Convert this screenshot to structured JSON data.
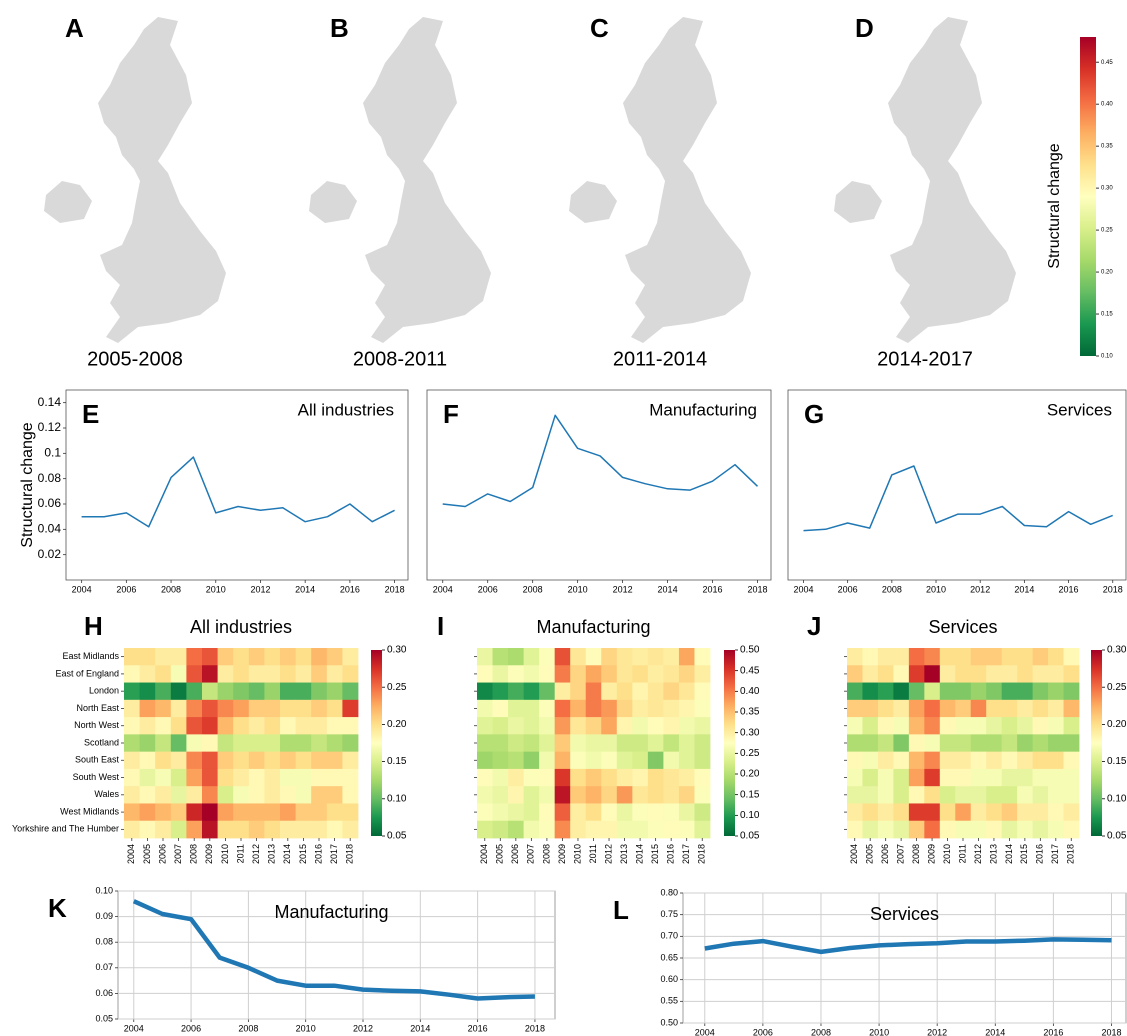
{
  "chart_data": [
    {
      "type": "map",
      "panels": [
        {
          "letter": "A",
          "period": "2005-2008"
        },
        {
          "letter": "B",
          "period": "2008-2011"
        },
        {
          "letter": "C",
          "period": "2011-2014"
        },
        {
          "letter": "D",
          "period": "2014-2017"
        }
      ],
      "colorbar": {
        "label": "Structural change",
        "cmap": "RdYlGn_r",
        "range": [
          0.1,
          0.48
        ],
        "ticks": [
          {
            "value": 0.1,
            "label": "0.10"
          },
          0.15,
          {
            "value": 0.2,
            "label": "0.20"
          },
          0.25,
          {
            "value": 0.3,
            "label": "0.30"
          },
          0.35,
          {
            "value": 0.4,
            "label": "0.40"
          },
          0.45
        ]
      }
    },
    {
      "type": "line",
      "letter": "E",
      "title": "All industries",
      "y_label": "Structural change",
      "color": "#1f77b4",
      "line_width": 1.5,
      "x": [
        2004,
        2005,
        2006,
        2007,
        2008,
        2009,
        2010,
        2011,
        2012,
        2013,
        2014,
        2015,
        2016,
        2017,
        2018
      ],
      "values": [
        0.05,
        0.05,
        0.053,
        0.042,
        0.081,
        0.097,
        0.053,
        0.058,
        0.055,
        0.057,
        0.046,
        0.05,
        0.06,
        0.046,
        0.055
      ],
      "xlim": [
        2003.3,
        2018.6
      ],
      "ylim": [
        0,
        0.15
      ],
      "xticks": [
        2004,
        2006,
        2008,
        2010,
        2012,
        2014,
        2016,
        2018
      ],
      "yticks": [
        0.02,
        0.04,
        0.06,
        0.08,
        0.1,
        0.12,
        0.14
      ]
    },
    {
      "type": "line",
      "letter": "F",
      "title": "Manufacturing",
      "color": "#1f77b4",
      "line_width": 1.5,
      "x": [
        2004,
        2005,
        2006,
        2007,
        2008,
        2009,
        2010,
        2011,
        2012,
        2013,
        2014,
        2015,
        2016,
        2017,
        2018
      ],
      "values": [
        0.06,
        0.058,
        0.068,
        0.062,
        0.073,
        0.13,
        0.104,
        0.098,
        0.081,
        0.076,
        0.072,
        0.071,
        0.078,
        0.091,
        0.074
      ],
      "xlim": [
        2003.3,
        2018.6
      ],
      "ylim": [
        0,
        0.15
      ],
      "xticks": [
        2004,
        2006,
        2008,
        2010,
        2012,
        2014,
        2016,
        2018
      ]
    },
    {
      "type": "line",
      "letter": "G",
      "title": "Services",
      "color": "#1f77b4",
      "line_width": 1.5,
      "x": [
        2004,
        2005,
        2006,
        2007,
        2008,
        2009,
        2010,
        2011,
        2012,
        2013,
        2014,
        2015,
        2016,
        2017,
        2018
      ],
      "values": [
        0.039,
        0.04,
        0.045,
        0.041,
        0.083,
        0.09,
        0.045,
        0.052,
        0.052,
        0.058,
        0.043,
        0.042,
        0.054,
        0.044,
        0.051
      ],
      "xlim": [
        2003.3,
        2018.6
      ],
      "ylim": [
        0,
        0.15
      ],
      "xticks": [
        2004,
        2006,
        2008,
        2010,
        2012,
        2014,
        2016,
        2018
      ]
    },
    {
      "type": "heatmap",
      "letter": "H",
      "title": "All industries",
      "cmap": "RdYlGn_r",
      "clim": [
        0.05,
        0.3
      ],
      "cticks": [
        0.05,
        {
          "value": 0.1,
          "label": "0.10"
        },
        0.15,
        {
          "value": 0.2,
          "label": "0.20"
        },
        0.25,
        {
          "value": 0.3,
          "label": "0.30"
        }
      ],
      "categories": [
        "East Midlands",
        "East of England",
        "London",
        "North East",
        "North West",
        "Scotland",
        "South East",
        "South West",
        "Wales",
        "West Midlands",
        "Yorkshire and The Humber"
      ],
      "x": [
        2004,
        2005,
        2006,
        2007,
        2008,
        2009,
        2010,
        2011,
        2012,
        2013,
        2014,
        2015,
        2016,
        2017,
        2018
      ],
      "values": [
        [
          0.2,
          0.2,
          0.19,
          0.19,
          0.25,
          0.26,
          0.21,
          0.2,
          0.21,
          0.2,
          0.21,
          0.2,
          0.22,
          0.21,
          0.19
        ],
        [
          0.18,
          0.19,
          0.2,
          0.17,
          0.26,
          0.29,
          0.19,
          0.2,
          0.19,
          0.19,
          0.2,
          0.19,
          0.21,
          0.19,
          0.2
        ],
        [
          0.08,
          0.07,
          0.09,
          0.06,
          0.09,
          0.14,
          0.12,
          0.11,
          0.1,
          0.12,
          0.09,
          0.09,
          0.11,
          0.12,
          0.1
        ],
        [
          0.19,
          0.23,
          0.22,
          0.19,
          0.24,
          0.26,
          0.24,
          0.23,
          0.21,
          0.21,
          0.2,
          0.2,
          0.21,
          0.2,
          0.27
        ],
        [
          0.18,
          0.19,
          0.18,
          0.2,
          0.26,
          0.27,
          0.22,
          0.2,
          0.19,
          0.2,
          0.18,
          0.19,
          0.19,
          0.18,
          0.18
        ],
        [
          0.13,
          0.12,
          0.14,
          0.1,
          0.17,
          0.18,
          0.14,
          0.15,
          0.15,
          0.15,
          0.13,
          0.13,
          0.14,
          0.13,
          0.12
        ],
        [
          0.19,
          0.18,
          0.2,
          0.19,
          0.24,
          0.26,
          0.21,
          0.2,
          0.21,
          0.2,
          0.21,
          0.2,
          0.21,
          0.21,
          0.19
        ],
        [
          0.18,
          0.16,
          0.17,
          0.15,
          0.23,
          0.26,
          0.2,
          0.19,
          0.18,
          0.19,
          0.17,
          0.17,
          0.18,
          0.18,
          0.18
        ],
        [
          0.19,
          0.18,
          0.19,
          0.16,
          0.19,
          0.24,
          0.15,
          0.17,
          0.18,
          0.19,
          0.18,
          0.17,
          0.21,
          0.21,
          0.18
        ],
        [
          0.22,
          0.23,
          0.22,
          0.21,
          0.28,
          0.3,
          0.23,
          0.22,
          0.22,
          0.22,
          0.23,
          0.21,
          0.21,
          0.2,
          0.2
        ],
        [
          0.19,
          0.18,
          0.19,
          0.15,
          0.23,
          0.29,
          0.2,
          0.2,
          0.21,
          0.2,
          0.19,
          0.19,
          0.19,
          0.18,
          0.19
        ]
      ]
    },
    {
      "type": "heatmap",
      "letter": "I",
      "title": "Manufacturing",
      "cmap": "RdYlGn_r",
      "clim": [
        0.05,
        0.5
      ],
      "cticks": [
        0.05,
        {
          "value": 0.1,
          "label": "0.10"
        },
        0.15,
        {
          "value": 0.2,
          "label": "0.20"
        },
        0.25,
        {
          "value": 0.3,
          "label": "0.30"
        },
        0.35,
        {
          "value": 0.4,
          "label": "0.40"
        },
        0.45,
        {
          "value": 0.5,
          "label": "0.50"
        }
      ],
      "x": [
        2004,
        2005,
        2006,
        2007,
        2008,
        2009,
        2010,
        2011,
        2012,
        2013,
        2014,
        2015,
        2016,
        2017,
        2018
      ],
      "values": [
        [
          0.25,
          0.2,
          0.19,
          0.24,
          0.27,
          0.43,
          0.31,
          0.28,
          0.33,
          0.31,
          0.3,
          0.31,
          0.3,
          0.37,
          0.28
        ],
        [
          0.28,
          0.25,
          0.27,
          0.26,
          0.28,
          0.4,
          0.33,
          0.37,
          0.34,
          0.31,
          0.32,
          0.3,
          0.31,
          0.33,
          0.3
        ],
        [
          0.08,
          0.1,
          0.12,
          0.1,
          0.14,
          0.3,
          0.33,
          0.4,
          0.3,
          0.32,
          0.29,
          0.31,
          0.33,
          0.31,
          0.28
        ],
        [
          0.26,
          0.28,
          0.24,
          0.24,
          0.27,
          0.41,
          0.36,
          0.4,
          0.38,
          0.33,
          0.3,
          0.31,
          0.3,
          0.29,
          0.27
        ],
        [
          0.24,
          0.23,
          0.25,
          0.24,
          0.26,
          0.38,
          0.31,
          0.33,
          0.37,
          0.29,
          0.26,
          0.28,
          0.29,
          0.26,
          0.25
        ],
        [
          0.2,
          0.2,
          0.22,
          0.21,
          0.24,
          0.34,
          0.26,
          0.25,
          0.25,
          0.22,
          0.22,
          0.24,
          0.21,
          0.24,
          0.22
        ],
        [
          0.18,
          0.19,
          0.2,
          0.17,
          0.26,
          0.36,
          0.27,
          0.26,
          0.27,
          0.24,
          0.23,
          0.16,
          0.26,
          0.24,
          0.22
        ],
        [
          0.28,
          0.26,
          0.3,
          0.27,
          0.28,
          0.45,
          0.32,
          0.34,
          0.32,
          0.3,
          0.29,
          0.32,
          0.31,
          0.3,
          0.28
        ],
        [
          0.26,
          0.25,
          0.29,
          0.24,
          0.26,
          0.48,
          0.34,
          0.36,
          0.33,
          0.38,
          0.31,
          0.32,
          0.31,
          0.33,
          0.27
        ],
        [
          0.27,
          0.26,
          0.25,
          0.24,
          0.28,
          0.42,
          0.3,
          0.32,
          0.28,
          0.25,
          0.27,
          0.28,
          0.27,
          0.25,
          0.22
        ],
        [
          0.23,
          0.22,
          0.2,
          0.26,
          0.27,
          0.39,
          0.3,
          0.29,
          0.29,
          0.26,
          0.26,
          0.27,
          0.28,
          0.27,
          0.24
        ]
      ]
    },
    {
      "type": "heatmap",
      "letter": "J",
      "title": "Services",
      "cmap": "RdYlGn_r",
      "clim": [
        0.05,
        0.3
      ],
      "cticks": [
        0.05,
        {
          "value": 0.1,
          "label": "0.10"
        },
        0.15,
        {
          "value": 0.2,
          "label": "0.20"
        },
        0.25,
        {
          "value": 0.3,
          "label": "0.30"
        }
      ],
      "x": [
        2004,
        2005,
        2006,
        2007,
        2008,
        2009,
        2010,
        2011,
        2012,
        2013,
        2014,
        2015,
        2016,
        2017,
        2018
      ],
      "values": [
        [
          0.19,
          0.18,
          0.19,
          0.19,
          0.25,
          0.24,
          0.2,
          0.2,
          0.21,
          0.21,
          0.2,
          0.2,
          0.21,
          0.2,
          0.18
        ],
        [
          0.21,
          0.19,
          0.2,
          0.18,
          0.27,
          0.3,
          0.19,
          0.2,
          0.2,
          0.19,
          0.19,
          0.2,
          0.19,
          0.19,
          0.2
        ],
        [
          0.09,
          0.07,
          0.08,
          0.06,
          0.1,
          0.15,
          0.11,
          0.11,
          0.12,
          0.11,
          0.09,
          0.09,
          0.11,
          0.12,
          0.11
        ],
        [
          0.21,
          0.21,
          0.2,
          0.19,
          0.23,
          0.25,
          0.22,
          0.21,
          0.24,
          0.2,
          0.2,
          0.19,
          0.2,
          0.19,
          0.22
        ],
        [
          0.17,
          0.15,
          0.18,
          0.17,
          0.22,
          0.24,
          0.18,
          0.17,
          0.17,
          0.16,
          0.15,
          0.16,
          0.18,
          0.17,
          0.15
        ],
        [
          0.13,
          0.13,
          0.14,
          0.11,
          0.18,
          0.17,
          0.14,
          0.14,
          0.13,
          0.13,
          0.14,
          0.12,
          0.13,
          0.12,
          0.12
        ],
        [
          0.18,
          0.17,
          0.19,
          0.18,
          0.22,
          0.24,
          0.19,
          0.19,
          0.18,
          0.19,
          0.18,
          0.19,
          0.2,
          0.2,
          0.18
        ],
        [
          0.17,
          0.15,
          0.17,
          0.15,
          0.23,
          0.27,
          0.18,
          0.18,
          0.17,
          0.17,
          0.16,
          0.16,
          0.17,
          0.17,
          0.17
        ],
        [
          0.16,
          0.16,
          0.17,
          0.15,
          0.18,
          0.2,
          0.15,
          0.16,
          0.16,
          0.15,
          0.15,
          0.17,
          0.16,
          0.17,
          0.17
        ],
        [
          0.19,
          0.2,
          0.19,
          0.2,
          0.27,
          0.27,
          0.2,
          0.23,
          0.19,
          0.2,
          0.21,
          0.19,
          0.19,
          0.18,
          0.19
        ],
        [
          0.18,
          0.16,
          0.17,
          0.16,
          0.21,
          0.25,
          0.18,
          0.17,
          0.17,
          0.18,
          0.16,
          0.17,
          0.16,
          0.17,
          0.18
        ]
      ]
    },
    {
      "type": "line",
      "letter": "K",
      "title": "Manufacturing",
      "color": "#1f77b4",
      "line_width": 4.5,
      "grid": true,
      "x": [
        2004,
        2005,
        2006,
        2007,
        2008,
        2009,
        2010,
        2011,
        2012,
        2013,
        2014,
        2015,
        2016,
        2017,
        2018
      ],
      "values": [
        0.096,
        0.091,
        0.089,
        0.074,
        0.07,
        0.065,
        0.063,
        0.063,
        0.0615,
        0.061,
        0.0608,
        0.0595,
        0.058,
        0.0585,
        0.0588
      ],
      "xlim": [
        2003.45,
        2018.7
      ],
      "ylim": [
        0.05,
        0.1
      ],
      "xticks": [
        2004,
        2006,
        2008,
        2010,
        2012,
        2014,
        2016,
        2018
      ],
      "yticks": [
        0.05,
        0.06,
        0.07,
        0.08,
        0.09,
        {
          "value": 0.1,
          "label": "0.10"
        }
      ]
    },
    {
      "type": "line",
      "letter": "L",
      "title": "Services",
      "color": "#1f77b4",
      "line_width": 4.5,
      "grid": true,
      "x": [
        2004,
        2005,
        2006,
        2007,
        2008,
        2009,
        2010,
        2011,
        2012,
        2013,
        2014,
        2015,
        2016,
        2017,
        2018
      ],
      "values": [
        0.672,
        0.683,
        0.689,
        0.676,
        0.664,
        0.673,
        0.679,
        0.682,
        0.684,
        0.688,
        0.688,
        0.69,
        0.693,
        0.692,
        0.691
      ],
      "xlim": [
        2003.25,
        2018.5
      ],
      "ylim": [
        0.5,
        0.8
      ],
      "xticks": [
        2004,
        2006,
        2008,
        2010,
        2012,
        2014,
        2016,
        2018
      ],
      "yticks": [
        {
          "value": 0.5,
          "label": "0.50"
        },
        0.55,
        {
          "value": 0.6,
          "label": "0.60"
        },
        0.65,
        {
          "value": 0.7,
          "label": "0.70"
        },
        0.75,
        {
          "value": 0.8,
          "label": "0.80"
        }
      ]
    }
  ]
}
